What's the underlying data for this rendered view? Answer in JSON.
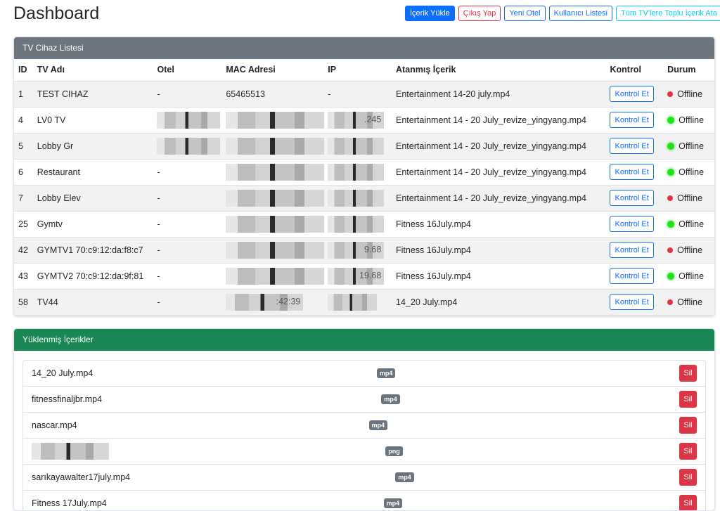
{
  "header": {
    "title": "Dashboard",
    "buttons": [
      "İçerik Yükle",
      "Çıkış Yap",
      "Yeni Otel",
      "Kullanıcı Listesi",
      "Tüm TV'lere Toplu İçerik Ata"
    ]
  },
  "tv": {
    "title": "TV Cihaz Listesi",
    "columns": [
      "ID",
      "TV Adı",
      "Otel",
      "MAC Adresi",
      "IP",
      "Atanmış İçerik",
      "Kontrol",
      "Durum"
    ],
    "button_label": "Kontrol Et",
    "rows": [
      {
        "id": "1",
        "name": "TEST CIHAZ",
        "otel": "-",
        "mac": "65465513",
        "ip": "-",
        "content": "Entertainment 14-20 july.mp4",
        "status": "Offline",
        "dot": "red"
      },
      {
        "id": "4",
        "name": "LV0 TV",
        "otel": "",
        "mac": "",
        "ip": ".245",
        "content": "Entertainment 14 - 20 July_revize_yingyang.mp4",
        "status": "Offline",
        "dot": "green"
      },
      {
        "id": "5",
        "name": "Lobby Gr",
        "otel": "",
        "mac": "",
        "ip": "",
        "content": "Entertainment 14 - 20 July_revize_yingyang.mp4",
        "status": "Offline",
        "dot": "green"
      },
      {
        "id": "6",
        "name": "Restaurant",
        "otel": "-",
        "mac": "",
        "ip": "",
        "content": "Entertainment 14 - 20 July_revize_yingyang.mp4",
        "status": "Offline",
        "dot": "green"
      },
      {
        "id": "7",
        "name": "Lobby Elev",
        "otel": "-",
        "mac": "",
        "ip": "",
        "content": "Entertainment 14 - 20 July_revize_yingyang.mp4",
        "status": "Offline",
        "dot": "red"
      },
      {
        "id": "25",
        "name": "Gymtv",
        "otel": "-",
        "mac": "",
        "ip": "",
        "content": "Fitness 16July.mp4",
        "status": "Offline",
        "dot": "green"
      },
      {
        "id": "42",
        "name": "GYMTV1 70:c9:12:da:f8:c7",
        "otel": "-",
        "mac": "",
        "ip": "9.68",
        "content": "Fitness 16July.mp4",
        "status": "Offline",
        "dot": "red"
      },
      {
        "id": "43",
        "name": "GYMTV2 70:c9:12:da:9f:81",
        "otel": "-",
        "mac": "",
        "ip": "19.68",
        "content": "Fitness 16July.mp4",
        "status": "Offline",
        "dot": "green"
      },
      {
        "id": "58",
        "name": "TV44",
        "otel": "-",
        "mac": ":42:39",
        "ip": "",
        "content": "14_20 July.mp4",
        "status": "Offline",
        "dot": "red"
      }
    ]
  },
  "contents": {
    "title": "Yüklenmiş İçerikler",
    "delete_label": "Sil",
    "items": [
      {
        "name": "14_20 July.mp4",
        "type": "mp4"
      },
      {
        "name": "fitnessfinaljbr.mp4",
        "type": "mp4"
      },
      {
        "name": "nascar.mp4",
        "type": "mp4"
      },
      {
        "name": "",
        "type": "png"
      },
      {
        "name": "sarıkayawalter17july.mp4",
        "type": "mp4"
      },
      {
        "name": "Fitness 17July.mp4",
        "type": "mp4"
      }
    ]
  },
  "colors": {
    "primary": "#0d6efd",
    "danger": "#dc3545",
    "success": "#198754",
    "secondary": "#6c757d",
    "online": "#22e01a"
  }
}
